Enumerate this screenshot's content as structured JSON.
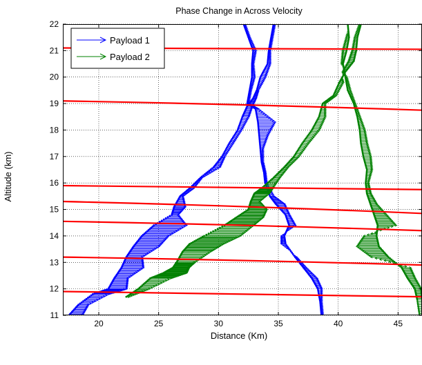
{
  "chart_data": {
    "type": "line",
    "title": "Phase Change in Across Velocity",
    "xlabel": "Distance (Km)",
    "ylabel": "Altitude (km)",
    "xlim": [
      17,
      47
    ],
    "ylim": [
      11,
      22
    ],
    "xticks": [
      20,
      25,
      30,
      35,
      40,
      45
    ],
    "yticks": [
      11,
      12,
      13,
      14,
      15,
      16,
      17,
      18,
      19,
      20,
      21,
      22
    ],
    "grid": true,
    "legend": {
      "placement": "top-left",
      "entries": [
        {
          "label": "Payload 1",
          "color": "#0000ff"
        },
        {
          "label": "Payload 2",
          "color": "#008000"
        }
      ]
    },
    "series": [
      {
        "name": "Payload 1",
        "color": "#0000ff",
        "part": "track-a",
        "points": [
          [
            17.5,
            11.0
          ],
          [
            18.3,
            11.4
          ],
          [
            19.5,
            11.8
          ],
          [
            20.8,
            12.0
          ],
          [
            21.3,
            12.4
          ],
          [
            21.9,
            12.8
          ],
          [
            22.3,
            13.2
          ],
          [
            22.9,
            13.6
          ],
          [
            23.6,
            14.0
          ],
          [
            24.6,
            14.4
          ],
          [
            26.1,
            14.8
          ],
          [
            26.3,
            15.1
          ],
          [
            26.8,
            15.5
          ],
          [
            27.6,
            15.8
          ],
          [
            28.5,
            16.2
          ],
          [
            29.6,
            16.6
          ],
          [
            30.3,
            17.0
          ],
          [
            30.9,
            17.5
          ],
          [
            31.6,
            18.0
          ],
          [
            32.0,
            18.5
          ],
          [
            32.4,
            18.9
          ],
          [
            32.9,
            19.2
          ],
          [
            33.2,
            19.5
          ],
          [
            33.5,
            20.0
          ],
          [
            34.1,
            20.5
          ],
          [
            34.2,
            21.0
          ],
          [
            34.4,
            21.5
          ],
          [
            34.6,
            22.0
          ]
        ],
        "arrow_lengths": [
          1.2,
          0.9,
          1.4,
          1.6,
          1.2,
          1.9,
          1.4,
          2.2,
          2.3,
          2.8,
          0.6,
          1.0,
          0.3,
          0.4,
          0.2,
          0.6,
          0.3,
          0.4,
          0.4,
          0.6,
          0.5,
          0.3,
          0.2,
          0.5,
          0.3,
          0.2,
          0.2,
          0.2
        ]
      },
      {
        "name": "Payload 1",
        "color": "#0000ff",
        "part": "track-b",
        "points": [
          [
            32.1,
            22.0
          ],
          [
            32.5,
            21.5
          ],
          [
            32.9,
            21.0
          ],
          [
            32.8,
            20.5
          ],
          [
            32.8,
            20.0
          ],
          [
            32.6,
            19.5
          ],
          [
            32.4,
            19.0
          ],
          [
            33.1,
            18.8
          ],
          [
            33.3,
            18.3
          ],
          [
            33.4,
            17.8
          ],
          [
            33.5,
            17.3
          ],
          [
            33.6,
            16.8
          ],
          [
            33.8,
            16.4
          ],
          [
            33.9,
            16.0
          ],
          [
            34.3,
            15.5
          ],
          [
            34.8,
            15.2
          ],
          [
            35.6,
            14.8
          ],
          [
            35.9,
            14.4
          ],
          [
            35.5,
            14.0
          ],
          [
            35.6,
            13.7
          ],
          [
            36.4,
            13.2
          ],
          [
            37.1,
            12.8
          ],
          [
            37.8,
            12.4
          ],
          [
            38.3,
            12.0
          ],
          [
            38.5,
            11.5
          ],
          [
            38.6,
            11.0
          ]
        ],
        "arrow_lengths": [
          0.2,
          0.2,
          0.3,
          0.2,
          0.3,
          0.2,
          0.2,
          0.3,
          1.5,
          0.8,
          0.3,
          0.2,
          0.2,
          0.2,
          0.4,
          0.8,
          0.4,
          0.6,
          -0.3,
          -0.4,
          0.2,
          0.3,
          0.5,
          0.4,
          0.2,
          0.2
        ]
      },
      {
        "name": "Payload 2",
        "color": "#008000",
        "part": "track-a",
        "points": [
          [
            22.3,
            11.7
          ],
          [
            23.3,
            12.0
          ],
          [
            24.3,
            12.4
          ],
          [
            25.4,
            12.6
          ],
          [
            26.2,
            12.8
          ],
          [
            26.5,
            13.0
          ],
          [
            27.0,
            13.4
          ],
          [
            27.6,
            13.7
          ],
          [
            28.8,
            14.0
          ],
          [
            30.5,
            14.4
          ],
          [
            31.5,
            14.7
          ],
          [
            32.5,
            15.0
          ],
          [
            32.7,
            15.3
          ],
          [
            33.0,
            15.6
          ],
          [
            33.6,
            15.8
          ],
          [
            34.6,
            16.2
          ],
          [
            35.5,
            16.6
          ],
          [
            36.3,
            17.0
          ],
          [
            37.0,
            17.5
          ],
          [
            37.8,
            18.0
          ],
          [
            38.4,
            18.5
          ],
          [
            38.7,
            19.0
          ],
          [
            39.6,
            19.3
          ],
          [
            40.1,
            19.8
          ],
          [
            40.6,
            20.2
          ],
          [
            41.3,
            20.6
          ],
          [
            41.5,
            21.0
          ],
          [
            41.6,
            21.5
          ],
          [
            41.9,
            22.0
          ]
        ],
        "arrow_lengths": [
          0.3,
          1.0,
          1.8,
          2.0,
          1.4,
          1.6,
          2.4,
          2.9,
          3.1,
          2.5,
          2.3,
          1.6,
          0.8,
          1.3,
          1.0,
          0.6,
          0.4,
          0.5,
          0.6,
          0.7,
          0.6,
          0.3,
          0.3,
          0.4,
          -0.3,
          -0.5,
          -0.4,
          -0.3,
          -0.2
        ]
      },
      {
        "name": "Payload 2",
        "color": "#008000",
        "part": "track-b",
        "points": [
          [
            40.8,
            22.0
          ],
          [
            40.9,
            21.5
          ],
          [
            40.7,
            21.0
          ],
          [
            40.4,
            20.5
          ],
          [
            40.6,
            20.0
          ],
          [
            40.8,
            19.5
          ],
          [
            41.3,
            19.0
          ],
          [
            41.6,
            18.5
          ],
          [
            41.8,
            18.0
          ],
          [
            41.9,
            17.5
          ],
          [
            42.1,
            17.0
          ],
          [
            42.4,
            16.5
          ],
          [
            42.3,
            16.0
          ],
          [
            42.4,
            15.6
          ],
          [
            42.7,
            15.2
          ],
          [
            43.0,
            14.8
          ],
          [
            43.3,
            14.4
          ],
          [
            43.2,
            14.0
          ],
          [
            43.4,
            13.6
          ],
          [
            44.2,
            13.2
          ],
          [
            45.3,
            12.8
          ],
          [
            45.8,
            12.4
          ],
          [
            46.4,
            12.0
          ],
          [
            46.6,
            11.6
          ],
          [
            46.8,
            11.0
          ]
        ],
        "arrow_lengths": [
          0.1,
          -0.3,
          -0.4,
          -0.2,
          0.2,
          0.3,
          0.2,
          0.3,
          0.5,
          0.6,
          0.7,
          0.5,
          0.3,
          0.4,
          0.6,
          1.1,
          1.6,
          -1.1,
          -1.9,
          -1.5,
          0.8,
          0.7,
          0.6,
          0.5,
          0.4
        ]
      }
    ],
    "red_lines": [
      {
        "y_left": 21.1,
        "y_right": 21.05
      },
      {
        "y_left": 19.1,
        "y_right": 18.75
      },
      {
        "y_left": 15.9,
        "y_right": 15.75
      },
      {
        "y_left": 15.3,
        "y_right": 14.85
      },
      {
        "y_left": 14.55,
        "y_right": 14.2
      },
      {
        "y_left": 13.2,
        "y_right": 12.9
      },
      {
        "y_left": 11.9,
        "y_right": 11.7
      }
    ]
  }
}
